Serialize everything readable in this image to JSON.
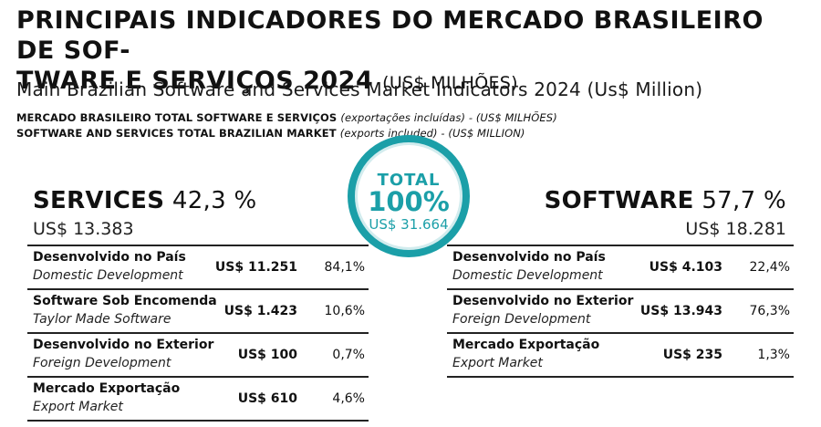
{
  "header": {
    "title_line1": "PRINCIPAIS INDICADORES DO MERCADO BRASILEIRO DE SOF-",
    "title_line2": "TWARE E SERVIÇOS 2024",
    "title_unit": "(US$ MILHÕES)",
    "subtitle": "Main Brazilian Software and Services Market Indicators 2024 (Us$ Million)",
    "note1_bold": "MERCADO BRASILEIRO TOTAL SOFTWARE E SERVIÇOS",
    "note1_italic": "(exportações incluídas) - (US$ MILHÕES)",
    "note2_bold": "SOFTWARE AND SERVICES TOTAL BRAZILIAN MARKET",
    "note2_italic": "(exports included) - (US$ MILLION)"
  },
  "total": {
    "label": "TOTAL",
    "percent": "100%",
    "value": "US$ 31.664"
  },
  "services": {
    "name": "SERVICES",
    "percent": "42,3 %",
    "value": "US$ 13.383",
    "rows": [
      {
        "pt": "Desenvolvido no País",
        "en": "Domestic Development",
        "amount": "US$ 11.251",
        "pct": "84,1%"
      },
      {
        "pt": "Software Sob Encomenda",
        "en": "Taylor Made Software",
        "amount": "US$ 1.423",
        "pct": "10,6%"
      },
      {
        "pt": "Desenvolvido no Exterior",
        "en": "Foreign Development",
        "amount": "US$ 100",
        "pct": "0,7%"
      },
      {
        "pt": "Mercado Exportação",
        "en": "Export Market",
        "amount": "US$ 610",
        "pct": "4,6%"
      }
    ]
  },
  "software": {
    "name": "SOFTWARE",
    "percent": "57,7 %",
    "value": "US$ 18.281",
    "rows": [
      {
        "pt": "Desenvolvido no País",
        "en": "Domestic Development",
        "amount": "US$ 4.103",
        "pct": "22,4%"
      },
      {
        "pt": "Desenvolvido no Exterior",
        "en": "Foreign Development",
        "amount": "US$ 13.943",
        "pct": "76,3%"
      },
      {
        "pt": "Mercado Exportação",
        "en": "Export Market",
        "amount": "US$ 235",
        "pct": "1,3%"
      }
    ]
  },
  "colors": {
    "accent": "#1b9fa8",
    "text": "#111111"
  }
}
